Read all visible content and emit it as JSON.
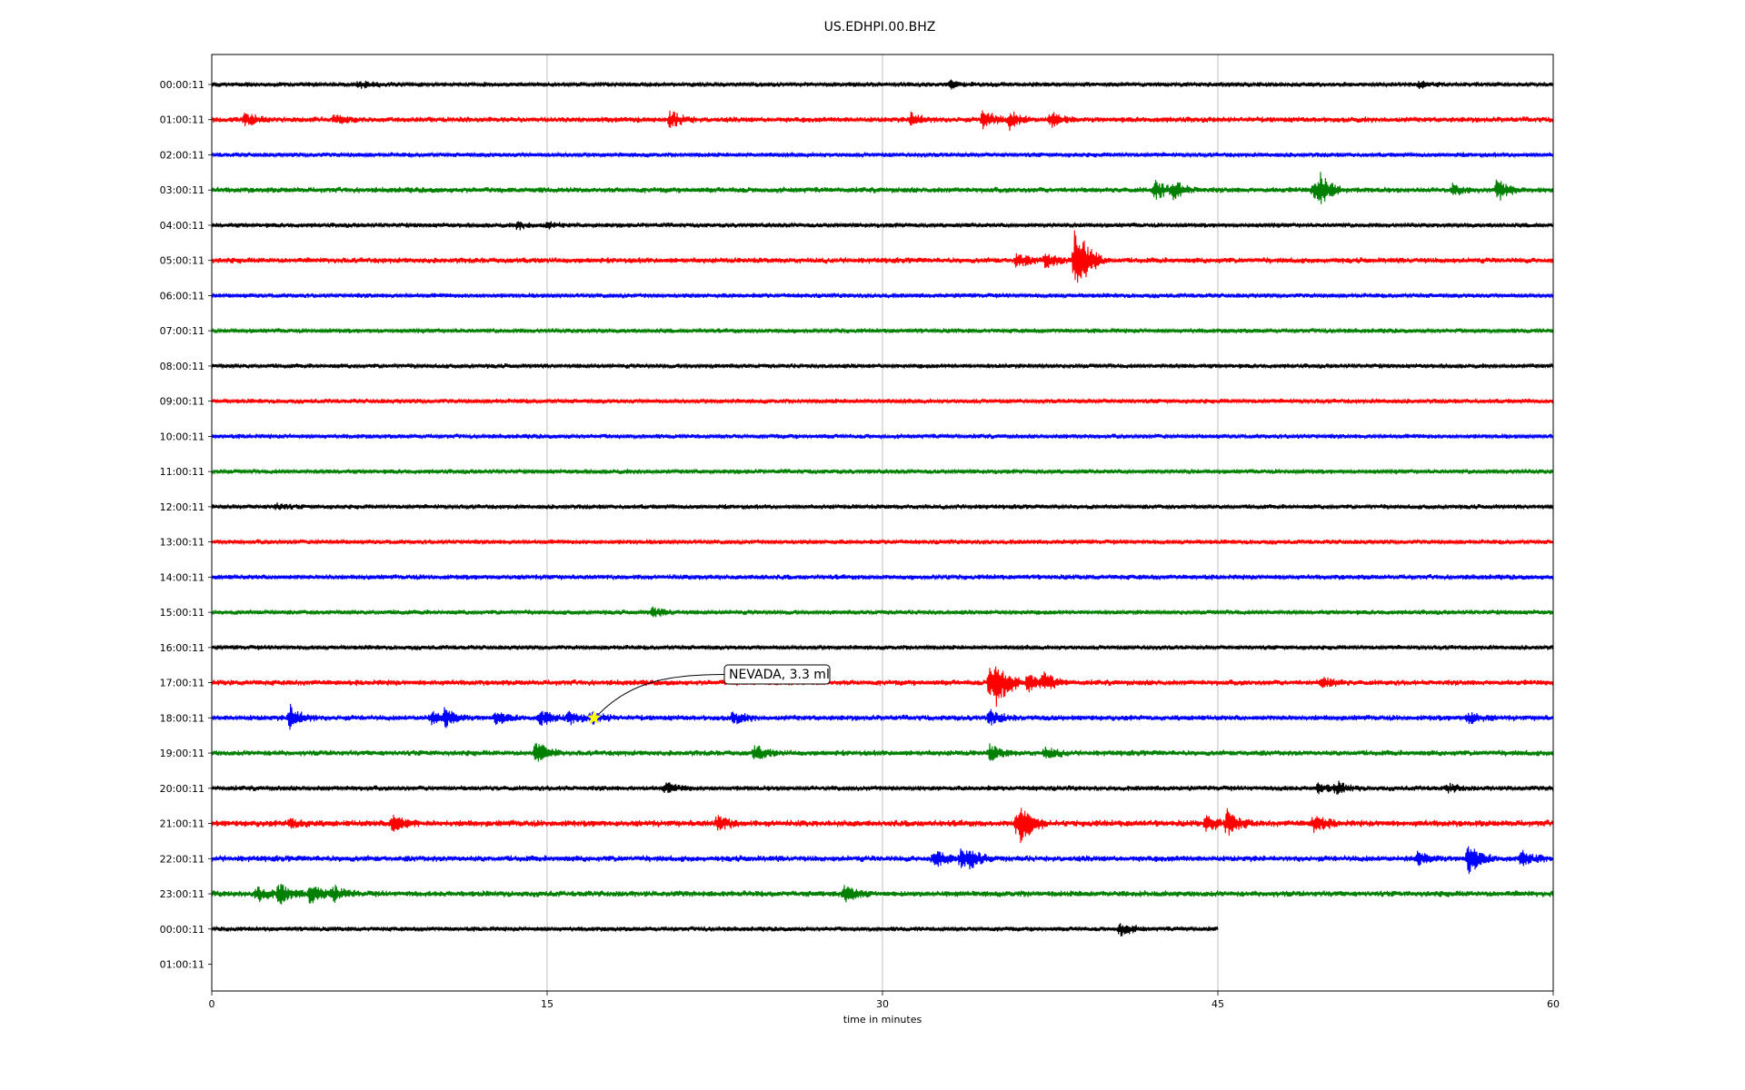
{
  "chart_data": {
    "type": "line",
    "title": "US.EDHPI.00.BHZ",
    "xlabel": "time in minutes",
    "ylabel": "",
    "xlim": [
      0,
      60
    ],
    "x_ticks": [
      0,
      15,
      30,
      45,
      60
    ],
    "x_tick_labels": [
      "0",
      "15",
      "30",
      "45",
      "60"
    ],
    "grid": "vertical lines at x ticks",
    "row_labels": [
      "00:00:11",
      "01:00:11",
      "02:00:11",
      "03:00:11",
      "04:00:11",
      "05:00:11",
      "06:00:11",
      "07:00:11",
      "08:00:11",
      "09:00:11",
      "10:00:11",
      "11:00:11",
      "12:00:11",
      "13:00:11",
      "14:00:11",
      "15:00:11",
      "16:00:11",
      "17:00:11",
      "18:00:11",
      "19:00:11",
      "20:00:11",
      "21:00:11",
      "22:00:11",
      "23:00:11",
      "00:00:11",
      "01:00:11"
    ],
    "color_cycle": [
      "#000000",
      "#ff0000",
      "#0000ff",
      "#008000"
    ],
    "traces": [
      {
        "row": 0,
        "end": 60,
        "noise": 1.0,
        "events": [
          [
            6.6,
            4
          ],
          [
            33,
            4
          ],
          [
            54,
            3
          ]
        ]
      },
      {
        "row": 1,
        "end": 60,
        "noise": 1.2,
        "events": [
          [
            1.5,
            7
          ],
          [
            5.5,
            4
          ],
          [
            20.5,
            9
          ],
          [
            31.3,
            7
          ],
          [
            34.5,
            10
          ],
          [
            35.7,
            9
          ],
          [
            37.5,
            8
          ]
        ]
      },
      {
        "row": 2,
        "end": 60,
        "noise": 1.0,
        "events": []
      },
      {
        "row": 3,
        "end": 60,
        "noise": 1.2,
        "events": [
          [
            42.2,
            10
          ],
          [
            43,
            9
          ],
          [
            49.3,
            10
          ],
          [
            49.6,
            13
          ],
          [
            55.5,
            5
          ],
          [
            57.5,
            12
          ]
        ]
      },
      {
        "row": 4,
        "end": 60,
        "noise": 1.0,
        "events": [
          [
            13.7,
            4
          ],
          [
            15,
            3
          ]
        ]
      },
      {
        "row": 5,
        "end": 60,
        "noise": 1.2,
        "events": [
          [
            36,
            8
          ],
          [
            37.3,
            8
          ],
          [
            38.6,
            38
          ],
          [
            39,
            8
          ]
        ]
      },
      {
        "row": 6,
        "end": 60,
        "noise": 1.0,
        "events": []
      },
      {
        "row": 7,
        "end": 60,
        "noise": 1.0,
        "events": []
      },
      {
        "row": 8,
        "end": 60,
        "noise": 1.0,
        "events": []
      },
      {
        "row": 9,
        "end": 60,
        "noise": 1.0,
        "events": []
      },
      {
        "row": 10,
        "end": 60,
        "noise": 1.0,
        "events": []
      },
      {
        "row": 11,
        "end": 60,
        "noise": 1.0,
        "events": []
      },
      {
        "row": 12,
        "end": 60,
        "noise": 1.0,
        "events": [
          [
            2.9,
            3
          ]
        ]
      },
      {
        "row": 13,
        "end": 60,
        "noise": 1.0,
        "events": []
      },
      {
        "row": 14,
        "end": 60,
        "noise": 1.1,
        "events": []
      },
      {
        "row": 15,
        "end": 60,
        "noise": 1.0,
        "events": [
          [
            19.7,
            5
          ]
        ]
      },
      {
        "row": 16,
        "end": 60,
        "noise": 1.0,
        "events": []
      },
      {
        "row": 17,
        "end": 60,
        "noise": 1.2,
        "events": [
          [
            34.8,
            17
          ],
          [
            35.1,
            22
          ],
          [
            36.5,
            10
          ],
          [
            37.2,
            9
          ],
          [
            49.7,
            6
          ]
        ]
      },
      {
        "row": 18,
        "end": 60,
        "noise": 1.2,
        "events": [
          [
            3.5,
            13
          ],
          [
            9.8,
            6
          ],
          [
            10.4,
            9
          ],
          [
            12.7,
            6
          ],
          [
            14.7,
            8
          ],
          [
            16,
            6
          ],
          [
            17,
            6
          ],
          [
            23.3,
            6
          ],
          [
            34.8,
            8
          ],
          [
            56.2,
            7
          ]
        ]
      },
      {
        "row": 19,
        "end": 60,
        "noise": 1.2,
        "events": [
          [
            14.5,
            12
          ],
          [
            24.3,
            8
          ],
          [
            34.8,
            8
          ],
          [
            37.3,
            6
          ]
        ]
      },
      {
        "row": 20,
        "end": 60,
        "noise": 1.1,
        "events": [
          [
            20.3,
            5
          ],
          [
            49.5,
            5
          ],
          [
            50.3,
            6
          ],
          [
            55.3,
            4
          ]
        ]
      },
      {
        "row": 21,
        "end": 60,
        "noise": 1.4,
        "events": [
          [
            3.5,
            5
          ],
          [
            8.1,
            10
          ],
          [
            22.6,
            8
          ],
          [
            36,
            14
          ],
          [
            36.2,
            12
          ],
          [
            44.5,
            9
          ],
          [
            45.4,
            13
          ],
          [
            49.3,
            10
          ]
        ]
      },
      {
        "row": 22,
        "end": 60,
        "noise": 1.3,
        "events": [
          [
            32.3,
            10
          ],
          [
            33.5,
            10
          ],
          [
            33.9,
            8
          ],
          [
            53.9,
            7
          ],
          [
            56.2,
            16
          ],
          [
            58.6,
            7
          ]
        ]
      },
      {
        "row": 23,
        "end": 60,
        "noise": 1.3,
        "events": [
          [
            2,
            8
          ],
          [
            3,
            11
          ],
          [
            4.4,
            10
          ],
          [
            5.4,
            8
          ],
          [
            28.3,
            9
          ]
        ]
      },
      {
        "row": 24,
        "end": 45,
        "noise": 1.0,
        "events": [
          [
            40.6,
            8
          ]
        ]
      }
    ],
    "annotations": [
      {
        "text": "NEVADA, 3.3 ml",
        "x": 17.1,
        "row": 18,
        "marker": "star",
        "marker_color": "#ffff00"
      }
    ]
  }
}
